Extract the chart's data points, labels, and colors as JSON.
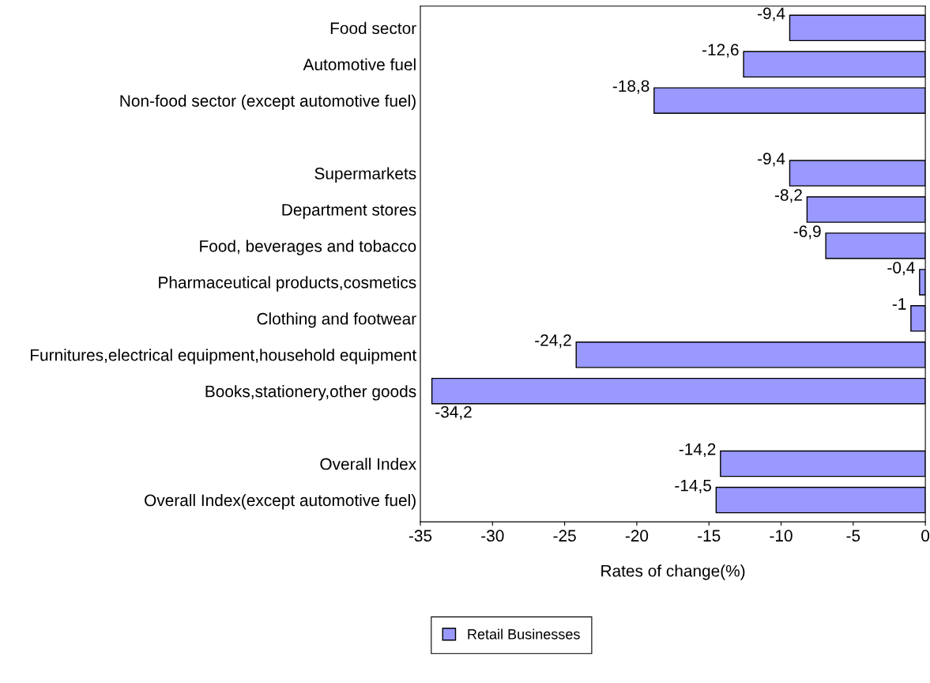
{
  "chart_data": {
    "type": "bar",
    "orientation": "horizontal",
    "categories": [
      "Food sector",
      "Automotive fuel",
      "Non-food sector (except automotive fuel)",
      null,
      "Supermarkets",
      "Department stores",
      "Food, beverages and tobacco",
      "Pharmaceutical products,cosmetics",
      "Clothing and footwear",
      "Furnitures,electrical equipment,household equipment",
      "Books,stationery,other goods",
      null,
      "Overall Index",
      "Overall Index(except automotive fuel)"
    ],
    "series": [
      {
        "name": "Retail Businesses",
        "color": "#9999ff",
        "values": [
          -9.4,
          -12.6,
          -18.8,
          null,
          -9.4,
          -8.2,
          -6.9,
          -0.4,
          -1,
          -24.2,
          -34.2,
          null,
          -14.2,
          -14.5
        ],
        "value_labels": [
          "-9,4",
          "-12,6",
          "-18,8",
          null,
          "-9,4",
          "-8,2",
          "-6,9",
          "-0,4",
          "-1",
          "-24,2",
          "-34,2",
          null,
          "-14,2",
          "-14,5"
        ]
      }
    ],
    "xlabel": "Rates of change(%)",
    "xlim": [
      -35,
      0
    ],
    "xticks": [
      -35,
      -30,
      -25,
      -20,
      -15,
      -10,
      -5,
      0
    ],
    "grid": false,
    "legend": "bottom"
  }
}
